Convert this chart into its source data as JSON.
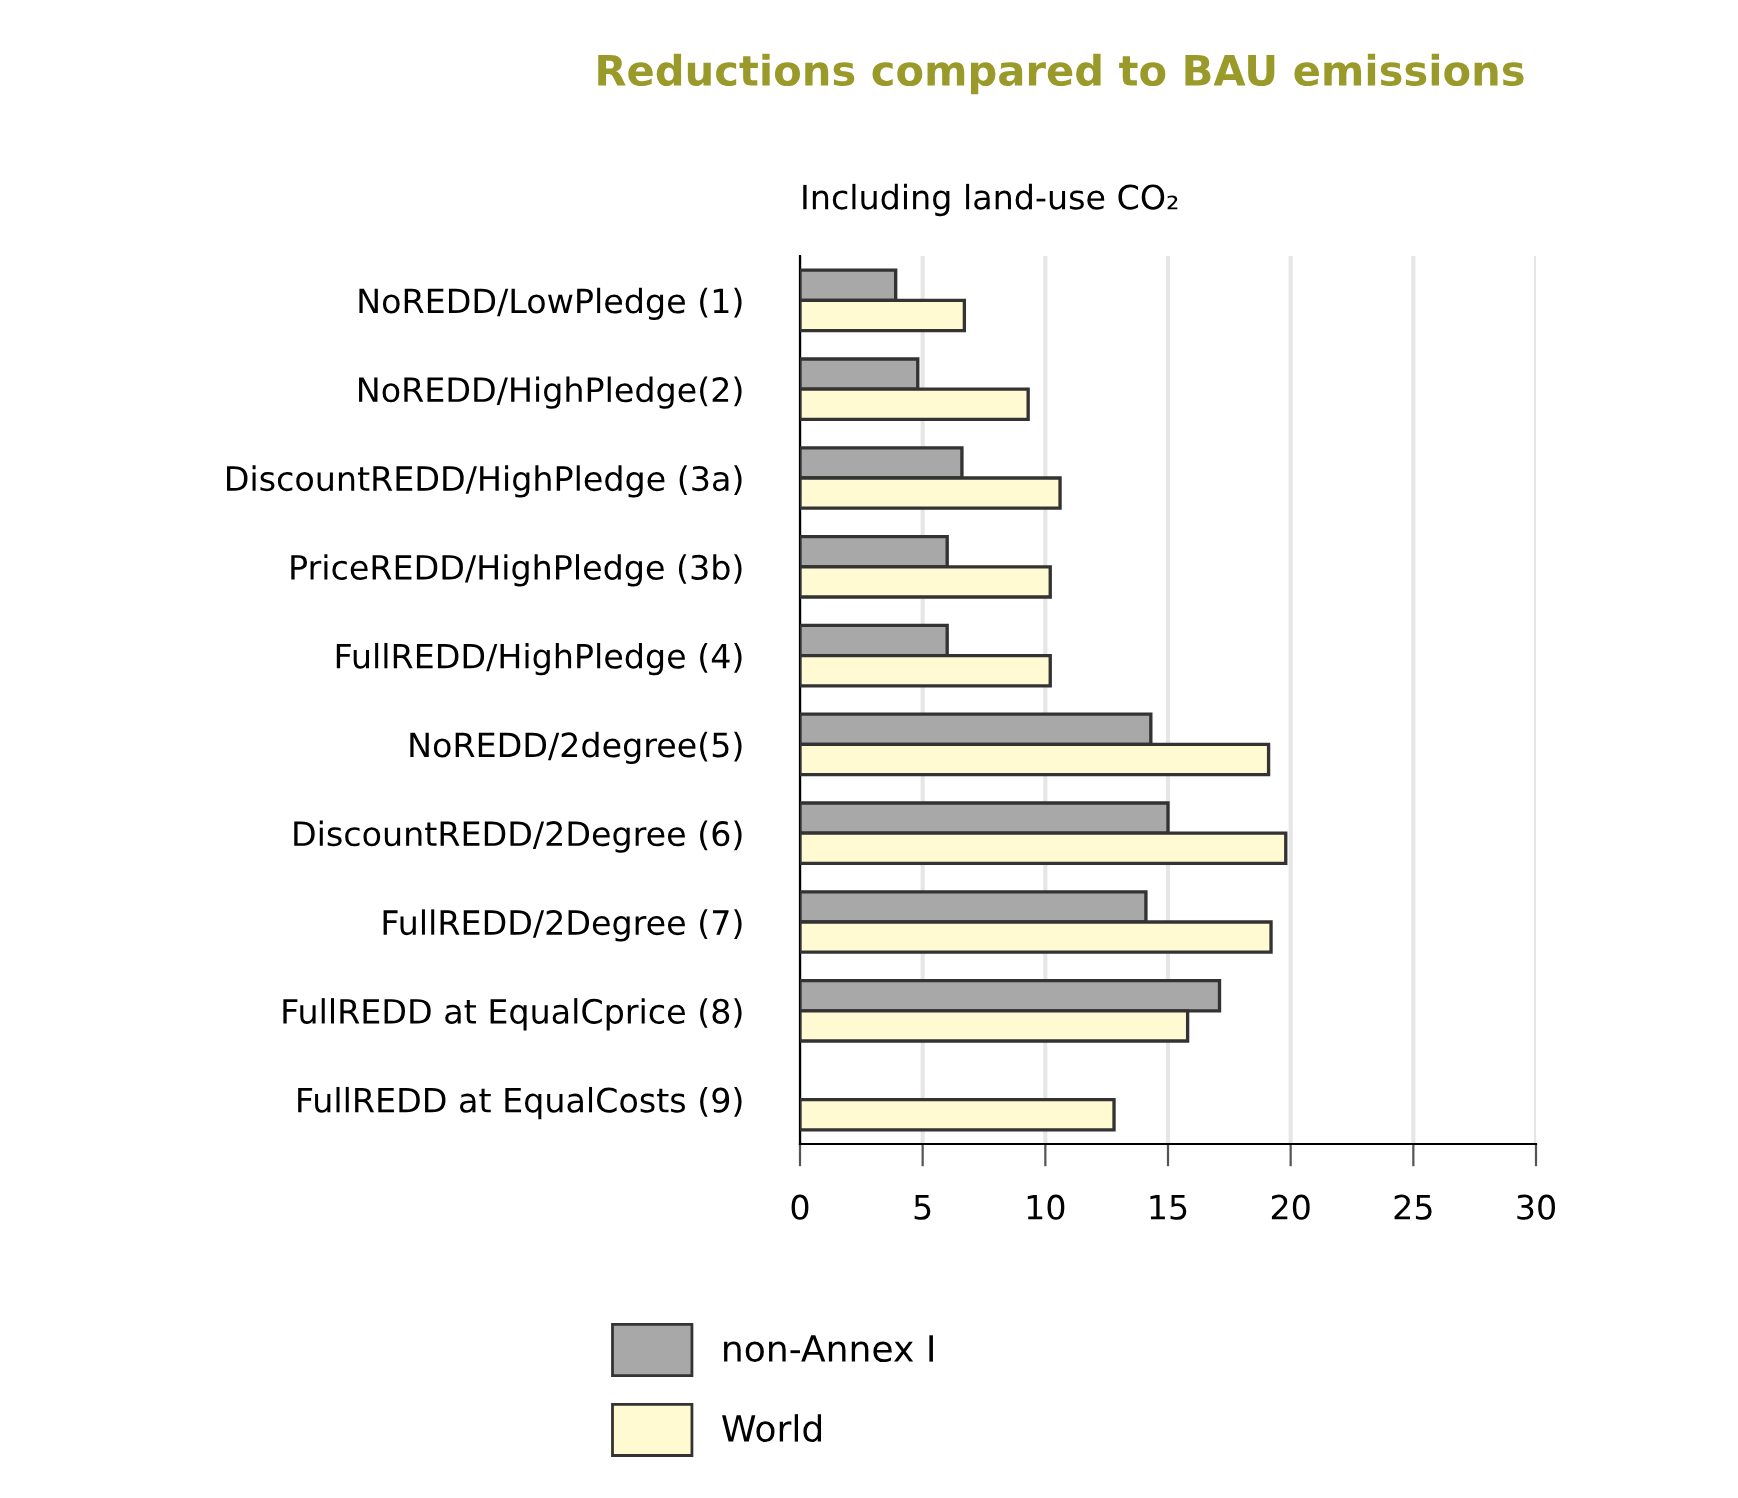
{
  "chart_data": {
    "type": "bar",
    "orientation": "horizontal",
    "title": "Reductions compared to BAU emissions",
    "subtitle": "Including land-use CO₂",
    "categories": [
      "NoREDD/LowPledge (1)",
      "NoREDD/HighPledge(2)",
      "DiscountREDD/HighPledge (3a)",
      "PriceREDD/HighPledge (3b)",
      "FullREDD/HighPledge (4)",
      "NoREDD/2degree(5)",
      "DiscountREDD/2Degree (6)",
      "FullREDD/2Degree (7)",
      "FullREDD at EqualCprice (8)",
      "FullREDD at EqualCosts (9)"
    ],
    "series": [
      {
        "name": "non-Annex I",
        "color": "#a8a8a8",
        "values": [
          3.9,
          4.8,
          6.6,
          6.0,
          6.0,
          14.3,
          15.0,
          14.1,
          17.1,
          null
        ]
      },
      {
        "name": "World",
        "color": "#fffad2",
        "values": [
          6.7,
          9.3,
          10.6,
          10.2,
          10.2,
          19.1,
          19.8,
          19.2,
          15.8,
          12.8
        ]
      }
    ],
    "xlim": [
      0,
      30
    ],
    "xticks": [
      0,
      5,
      10,
      15,
      20,
      25,
      30
    ],
    "grid": "x",
    "legend": "bottom left"
  }
}
